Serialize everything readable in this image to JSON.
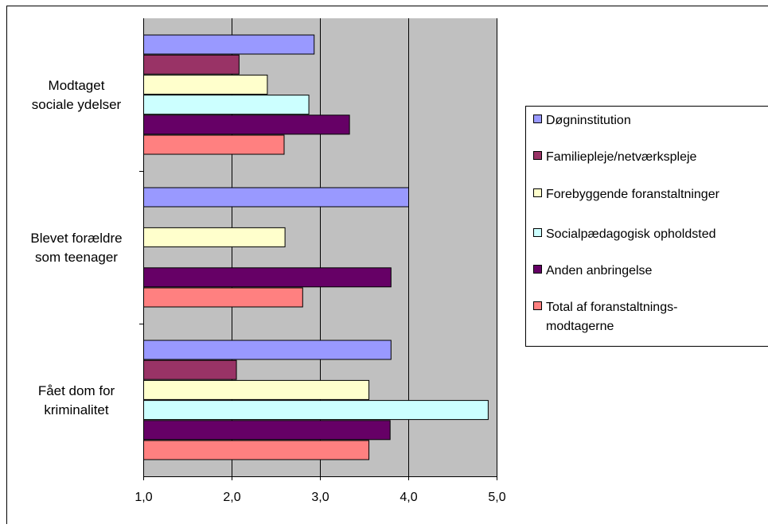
{
  "chart_data": {
    "type": "bar",
    "orientation": "horizontal",
    "categories": [
      [
        "Modtaget",
        "sociale ydelser"
      ],
      [
        "Blevet forældre",
        "som teenager"
      ],
      [
        "Fået dom for",
        "kriminalitet"
      ]
    ],
    "series": [
      {
        "name": "Døgninstitution",
        "color": "#9999ff",
        "values": [
          2.93,
          4.0,
          3.8
        ]
      },
      {
        "name": "Familiepleje/netværkspleje",
        "color": "#993366",
        "values": [
          2.08,
          null,
          2.05
        ]
      },
      {
        "name": "Forebyggende foranstaltninger",
        "color": "#ffffcc",
        "values": [
          2.4,
          2.6,
          3.55
        ]
      },
      {
        "name": "Socialpædagogisk opholdsted",
        "color": "#ccffff",
        "values": [
          2.87,
          null,
          4.9
        ]
      },
      {
        "name": "Anden anbringelse",
        "color": "#660066",
        "values": [
          3.33,
          3.8,
          3.79
        ]
      },
      {
        "name": [
          "Total af foranstaltnings-",
          "modtagerne"
        ],
        "color": "#ff8080",
        "values": [
          2.59,
          2.8,
          3.55
        ]
      }
    ],
    "xlim": [
      1.0,
      5.0
    ],
    "xticks": [
      "1,0",
      "2,0",
      "3,0",
      "4,0",
      "5,0"
    ],
    "grid": "vertical",
    "plot_background": "#c0c0c0",
    "legend_position": "right",
    "title": "",
    "xlabel": "",
    "ylabel": ""
  }
}
